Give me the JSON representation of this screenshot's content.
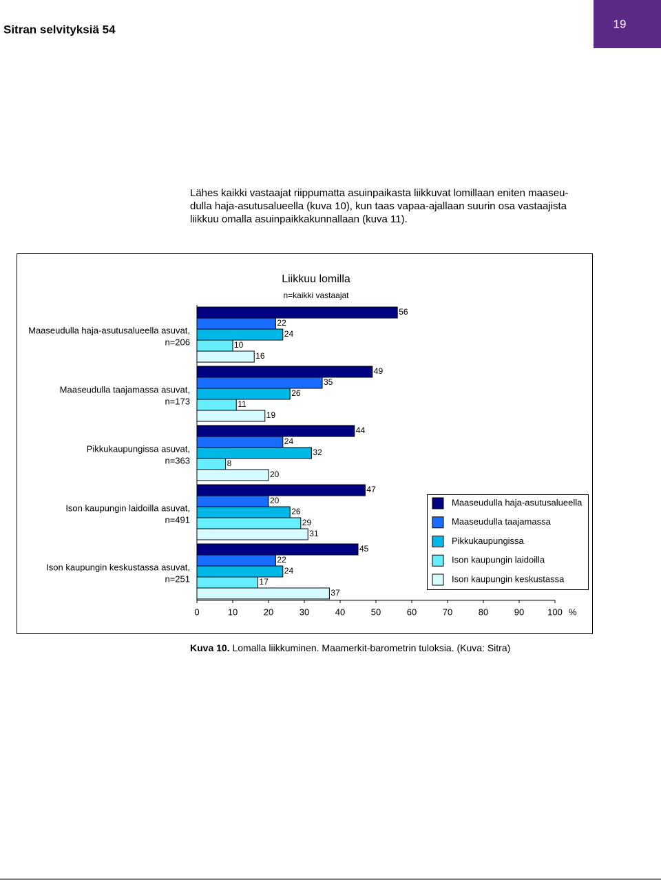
{
  "header": {
    "title": "Sitran selvityksiä 54",
    "page": "19"
  },
  "paragraph": [
    "Lähes kaikki vastaajat riippumatta asuinpaikasta liikkuvat lomillaan eniten maaseu-",
    "dulla haja-asutusalueella (kuva 10), kun taas vapaa-ajallaan suurin osa vastaajista",
    "liikkuu omalla asuinpaikkakunnallaan (kuva 11)."
  ],
  "chart_data": {
    "type": "bar",
    "orientation": "horizontal",
    "title": "Liikkuu lomilla",
    "subtitle": "n=kaikki vastaajat",
    "categories": [
      [
        "Maaseudulla haja-asutusalueella asuvat,",
        "n=206"
      ],
      [
        "Maaseudulla taajamassa asuvat,",
        "n=173"
      ],
      [
        "Pikkukaupungissa asuvat,",
        "n=363"
      ],
      [
        "Ison kaupungin laidoilla asuvat,",
        "n=491"
      ],
      [
        "Ison kaupungin keskustassa asuvat,",
        "n=251"
      ]
    ],
    "series": [
      {
        "name": "Maaseudulla haja-asutusalueella",
        "color": "#000080",
        "values": [
          56,
          49,
          44,
          47,
          45
        ]
      },
      {
        "name": "Maaseudulla taajamassa",
        "color": "#1a6cff",
        "values": [
          22,
          35,
          24,
          20,
          22
        ]
      },
      {
        "name": "Pikkukaupungissa",
        "color": "#00b8e8",
        "values": [
          24,
          26,
          32,
          26,
          24
        ]
      },
      {
        "name": "Ison kaupungin laidoilla",
        "color": "#66eeff",
        "values": [
          10,
          11,
          8,
          29,
          17
        ]
      },
      {
        "name": "Ison kaupungin keskustassa",
        "color": "#d6fbff",
        "values": [
          16,
          19,
          20,
          31,
          37
        ]
      }
    ],
    "xlim": [
      0,
      100
    ],
    "xticks": [
      0,
      10,
      20,
      30,
      40,
      50,
      60,
      70,
      80,
      90,
      100
    ],
    "x_unit": "%"
  },
  "caption": {
    "label": "Kuva 10.",
    "text": "Lomalla liikkuminen. Maamerkit-barometrin tuloksia. (Kuva: Sitra)"
  }
}
